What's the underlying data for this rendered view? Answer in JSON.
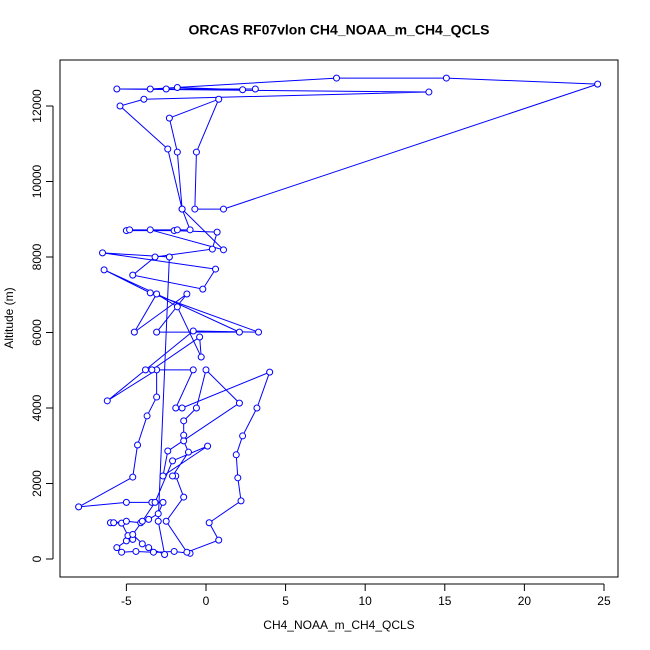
{
  "chart_data": {
    "type": "line",
    "title": "ORCAS RF07vlon CH4_NOAA_m_CH4_QCLS",
    "xlabel": "CH4_NOAA_m_CH4_QCLS",
    "ylabel": "Altitude (m)",
    "color": "#0000ff",
    "marker": "circle",
    "x": [
      -1.0,
      -2.0,
      -3.3,
      -4.4,
      -5.3,
      -5.6,
      -5.0,
      -4.6,
      -4.9,
      -5.3,
      -6.0,
      -5.8,
      -5.0,
      -4.1,
      -3.6,
      -3.0,
      -2.7,
      -3.4,
      -5.0,
      -8.0,
      -4.6,
      -4.3,
      -3.7,
      -3.1,
      -3.1,
      -6.2,
      -3.8,
      -0.8,
      3.3,
      -3.5,
      -6.4,
      2.1,
      -3.1,
      -1.2,
      -4.5,
      -3.1,
      -1.8,
      -0.3,
      -0.4,
      -3.4,
      -0.8,
      -1.9,
      -1.5,
      4.0,
      3.2,
      2.3,
      1.9,
      2.0,
      2.2,
      0.2,
      0.8,
      -1.2,
      -2.5,
      -1.4,
      -1.9,
      -2.1,
      -1.1,
      -1.4,
      -1.4,
      -1.4,
      -0.6,
      0.0,
      2.1,
      -2.4,
      -2.7,
      0.1,
      -2.1,
      -3.2,
      -4.0,
      -4.6,
      -4.0,
      -3.6,
      -2.6,
      -3.0,
      -2.3,
      -6.5,
      0.6,
      -0.2,
      -4.6,
      -3.2,
      0.4,
      0.7,
      -2.0,
      -5.0,
      -3.5,
      1.1,
      -1.5,
      -2.4,
      -5.4,
      -3.9,
      14.0,
      -5.6,
      3.1,
      -2.5,
      2.3,
      -1.8,
      -3.5,
      8.2,
      15.1,
      24.6,
      1.1,
      -0.7,
      -0.6,
      0.8,
      -2.3,
      -1.8,
      -1.5,
      -1.0,
      -4.8,
      -1.8
    ],
    "values": [
      150,
      200,
      180,
      200,
      180,
      300,
      480,
      520,
      620,
      950,
      960,
      960,
      1000,
      960,
      1050,
      1200,
      1500,
      1500,
      1500,
      1380,
      2170,
      3020,
      3790,
      4290,
      5010,
      4190,
      5010,
      6040,
      6010,
      7050,
      7660,
      6010,
      6010,
      7020,
      6010,
      7020,
      6680,
      5350,
      5880,
      5010,
      5010,
      4000,
      4000,
      4950,
      4000,
      3260,
      2760,
      2150,
      1540,
      960,
      500,
      180,
      1000,
      1640,
      2200,
      2200,
      2830,
      3130,
      3280,
      3660,
      4000,
      5010,
      4130,
      2860,
      2200,
      2990,
      2600,
      1500,
      1000,
      650,
      400,
      300,
      120,
      1000,
      8000,
      8110,
      7680,
      7150,
      7520,
      8000,
      8210,
      8660,
      8700,
      8700,
      8720,
      8190,
      9270,
      10860,
      12000,
      12180,
      12370,
      12450,
      12450,
      12450,
      12430,
      12490,
      12450,
      12740,
      12740,
      12580,
      9270,
      9270,
      10780,
      12180,
      11680,
      10780,
      9270,
      8720,
      8720,
      8720
    ],
    "xlim": [
      -9.17,
      25.88
    ],
    "ylim": [
      -477,
      13219
    ],
    "xticks": [
      -5,
      0,
      5,
      10,
      15,
      20,
      25
    ],
    "yticks": [
      0,
      2000,
      4000,
      6000,
      8000,
      10000,
      12000
    ]
  }
}
